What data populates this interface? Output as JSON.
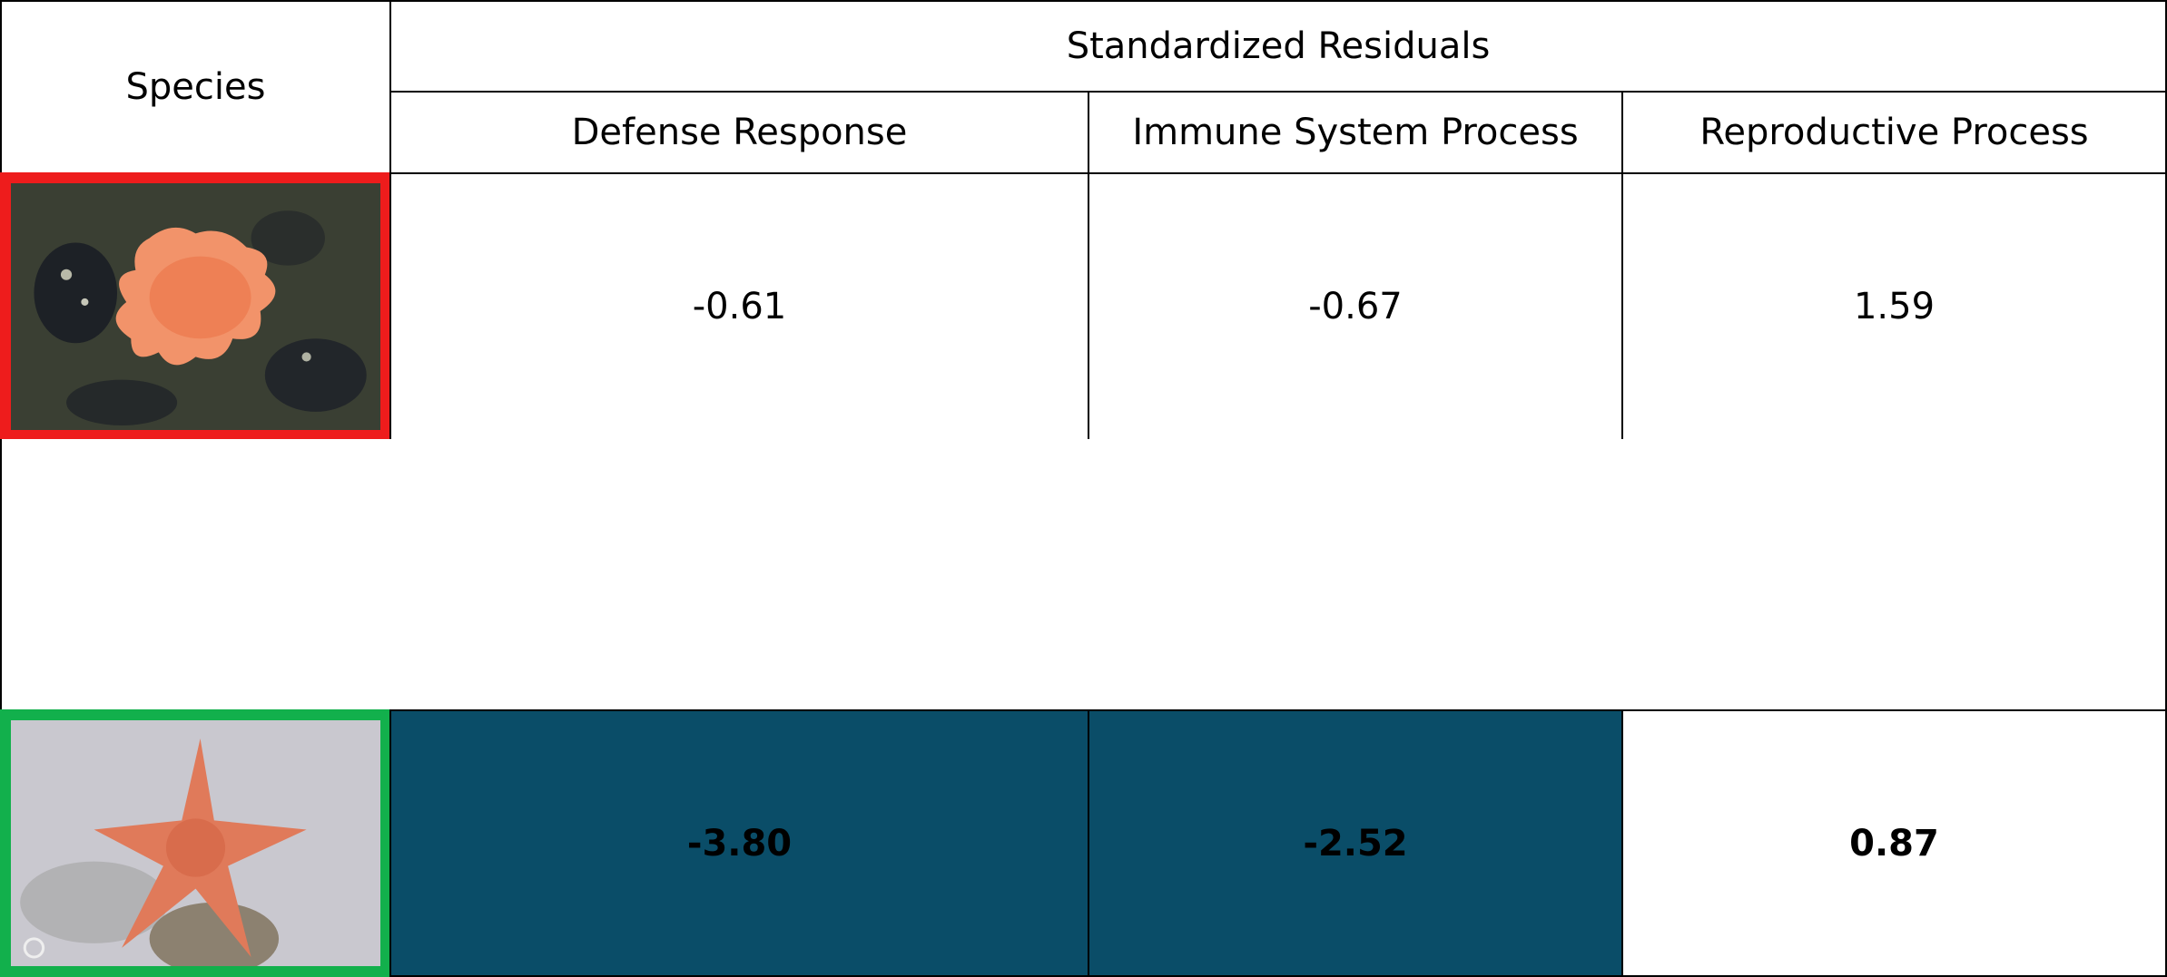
{
  "header": {
    "species": "Species",
    "group": "Standardized Residuals",
    "columns": [
      "Defense Response",
      "Immune System Process",
      "Reproductive Process"
    ]
  },
  "rows": [
    {
      "values": [
        "-0.61",
        "-0.67",
        "1.59"
      ]
    },
    {
      "values": [
        "-3.80",
        "-2.52",
        "0.87"
      ]
    }
  ]
}
